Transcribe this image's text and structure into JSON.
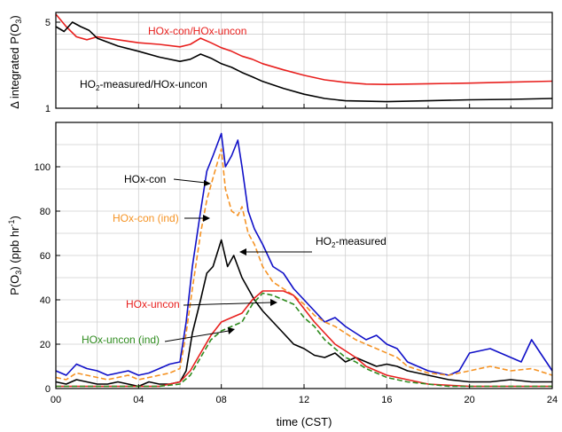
{
  "chart_data": [
    {
      "panel": "top",
      "type": "line",
      "ylabel_prefix": "Δ integrated P(O",
      "ylabel_sub": "3",
      "ylabel_suffix": ")",
      "y_scale": "log",
      "ylim": [
        1,
        6
      ],
      "yticks": [
        {
          "value": 1,
          "label": "1"
        },
        {
          "value": 5,
          "label": "5"
        }
      ],
      "xlim": [
        0,
        24
      ],
      "grid": true,
      "series": [
        {
          "name": "HOx-con/HOx-uncon",
          "color": "#e8201e",
          "x": [
            0,
            0.5,
            1,
            1.5,
            2,
            3,
            4,
            5,
            6,
            6.5,
            7,
            7.5,
            8,
            8.5,
            9,
            9.5,
            10,
            11,
            12,
            13,
            14,
            15,
            16,
            18,
            20,
            22,
            24
          ],
          "values": [
            5.8,
            4.6,
            3.8,
            3.6,
            3.8,
            3.6,
            3.4,
            3.3,
            3.15,
            3.3,
            3.7,
            3.4,
            3.1,
            2.9,
            2.65,
            2.5,
            2.3,
            2.05,
            1.85,
            1.7,
            1.62,
            1.57,
            1.56,
            1.58,
            1.6,
            1.63,
            1.66
          ]
        },
        {
          "name": "HO2-measured/HOx-uncon",
          "color": "#000000",
          "x": [
            0,
            0.4,
            0.8,
            1.2,
            1.6,
            2,
            3,
            4,
            5,
            6,
            6.5,
            7,
            7.5,
            8,
            8.5,
            9,
            9.5,
            10,
            11,
            12,
            13,
            14,
            15,
            16,
            18,
            20,
            22,
            24
          ],
          "values": [
            4.6,
            4.2,
            5.0,
            4.6,
            4.3,
            3.7,
            3.2,
            2.9,
            2.6,
            2.4,
            2.5,
            2.75,
            2.55,
            2.3,
            2.15,
            1.95,
            1.8,
            1.65,
            1.45,
            1.3,
            1.2,
            1.15,
            1.14,
            1.13,
            1.15,
            1.17,
            1.18,
            1.2
          ]
        }
      ],
      "annotations": [
        {
          "text": "HOx-con/HOx-uncon",
          "color": "#e8201e"
        },
        {
          "text_main": "HO",
          "text_sub": "2",
          "text_rest": "-measured/HOx-uncon",
          "color": "#000000"
        }
      ]
    },
    {
      "panel": "bottom",
      "type": "line",
      "xlabel": "time (CST)",
      "ylabel_prefix": "P(O",
      "ylabel_sub": "3",
      "ylabel_suffix": ") (ppb hr",
      "ylabel_sup": "-1",
      "ylabel_end": ")",
      "xlim": [
        0,
        24
      ],
      "ylim": [
        0,
        120
      ],
      "xticks": [
        {
          "value": 0,
          "label": "00"
        },
        {
          "value": 4,
          "label": "04"
        },
        {
          "value": 8,
          "label": "08"
        },
        {
          "value": 12,
          "label": "12"
        },
        {
          "value": 16,
          "label": "16"
        },
        {
          "value": 20,
          "label": "20"
        },
        {
          "value": 24,
          "label": "24"
        }
      ],
      "yticks": [
        {
          "value": 0,
          "label": "0"
        },
        {
          "value": 20,
          "label": "20"
        },
        {
          "value": 40,
          "label": "40"
        },
        {
          "value": 60,
          "label": "60"
        },
        {
          "value": 80,
          "label": "80"
        },
        {
          "value": 100,
          "label": "100"
        }
      ],
      "grid": true,
      "series": [
        {
          "name": "HOx-con",
          "color": "#1010c8",
          "dash": "solid",
          "x": [
            0,
            0.5,
            1,
            1.5,
            2,
            2.5,
            3,
            3.5,
            4,
            4.5,
            5,
            5.5,
            6,
            6.3,
            6.6,
            7,
            7.3,
            7.6,
            8,
            8.2,
            8.5,
            8.8,
            9,
            9.3,
            9.6,
            10,
            10.5,
            11,
            11.5,
            12,
            12.5,
            13,
            13.5,
            14,
            14.5,
            15,
            15.5,
            16,
            16.5,
            17,
            18,
            19,
            19.5,
            20,
            21,
            22,
            22.5,
            23,
            23.5,
            24
          ],
          "values": [
            8,
            6,
            11,
            9,
            8,
            6,
            7,
            8,
            6,
            7,
            9,
            11,
            12,
            30,
            55,
            80,
            98,
            105,
            115,
            100,
            105,
            112,
            100,
            80,
            72,
            65,
            55,
            52,
            45,
            40,
            35,
            30,
            32,
            28,
            25,
            22,
            24,
            20,
            18,
            12,
            8,
            6,
            8,
            16,
            18,
            14,
            12,
            22,
            15,
            8
          ]
        },
        {
          "name": "HOx-con (ind)",
          "color": "#f59324",
          "dash": "dashed",
          "x": [
            0,
            0.5,
            1,
            1.5,
            2,
            2.5,
            3,
            3.5,
            4,
            4.5,
            5,
            5.5,
            6,
            6.3,
            6.6,
            7,
            7.3,
            7.6,
            8,
            8.2,
            8.5,
            8.8,
            9,
            9.3,
            9.6,
            10,
            10.5,
            11,
            11.5,
            12,
            12.5,
            13,
            13.5,
            14,
            14.5,
            15,
            15.5,
            16,
            16.5,
            17,
            18,
            19,
            20,
            21,
            22,
            23,
            24
          ],
          "values": [
            5,
            4,
            7,
            6,
            5,
            4,
            5,
            6,
            4,
            5,
            6,
            7,
            9,
            25,
            45,
            70,
            85,
            95,
            108,
            90,
            80,
            78,
            82,
            70,
            65,
            55,
            48,
            45,
            42,
            38,
            33,
            30,
            28,
            25,
            22,
            20,
            18,
            16,
            14,
            10,
            7,
            6,
            8,
            10,
            8,
            9,
            6
          ]
        },
        {
          "name": "HO2-measured",
          "color": "#000000",
          "dash": "solid",
          "x": [
            0,
            0.5,
            1,
            1.5,
            2,
            2.5,
            3,
            3.5,
            4,
            4.5,
            5,
            5.5,
            6,
            6.3,
            6.6,
            7,
            7.3,
            7.6,
            8,
            8.3,
            8.6,
            9,
            9.3,
            9.6,
            10,
            10.5,
            11,
            11.5,
            12,
            12.5,
            13,
            13.5,
            14,
            14.5,
            15,
            15.5,
            16,
            16.5,
            17,
            18,
            19,
            20,
            21,
            22,
            23,
            24
          ],
          "values": [
            3,
            2,
            4,
            3,
            2,
            2,
            3,
            2,
            1,
            3,
            2,
            2,
            3,
            8,
            25,
            40,
            52,
            55,
            67,
            55,
            60,
            50,
            45,
            40,
            35,
            30,
            25,
            20,
            18,
            15,
            14,
            16,
            12,
            14,
            12,
            10,
            11,
            10,
            8,
            6,
            4,
            3,
            3,
            4,
            3,
            3
          ]
        },
        {
          "name": "HOx-uncon",
          "color": "#e8201e",
          "dash": "solid",
          "x": [
            0,
            1,
            2,
            3,
            4,
            5,
            6,
            6.5,
            7,
            7.5,
            8,
            8.5,
            9,
            9.5,
            10,
            10.5,
            11,
            11.5,
            12,
            12.5,
            13,
            13.5,
            14,
            14.5,
            15,
            16,
            17,
            18,
            19,
            20,
            21,
            22,
            23,
            24
          ],
          "values": [
            1,
            1,
            1,
            1,
            1,
            1,
            3,
            8,
            16,
            24,
            30,
            32,
            34,
            40,
            44,
            44,
            44,
            42,
            36,
            30,
            25,
            20,
            17,
            14,
            10,
            6,
            4,
            2,
            1.5,
            1,
            1,
            1,
            1,
            1
          ]
        },
        {
          "name": "HOx-uncon (ind)",
          "color": "#2e8b1e",
          "dash": "dashed",
          "x": [
            0,
            1,
            2,
            3,
            4,
            5,
            6,
            6.5,
            7,
            7.5,
            8,
            8.5,
            9,
            9.5,
            10,
            10.5,
            11,
            11.5,
            12,
            12.5,
            13,
            13.5,
            14,
            14.5,
            15,
            16,
            17,
            18,
            19,
            20,
            21,
            22,
            23,
            24
          ],
          "values": [
            1,
            1,
            1,
            1,
            1,
            1,
            2,
            6,
            14,
            22,
            26,
            28,
            30,
            38,
            43,
            42,
            40,
            38,
            32,
            28,
            22,
            18,
            14,
            12,
            9,
            5,
            3,
            2,
            1,
            1,
            1,
            1,
            1,
            1
          ]
        }
      ],
      "annotations": [
        {
          "text": "HOx-con",
          "color": "#000000"
        },
        {
          "text": "HOx-con (ind)",
          "color": "#f59324"
        },
        {
          "text_main": "HO",
          "text_sub": "2",
          "text_rest": "-measured",
          "color": "#000000"
        },
        {
          "text": "HOx-uncon",
          "color": "#e8201e"
        },
        {
          "text": "HOx-uncon (ind)",
          "color": "#2e8b1e"
        }
      ]
    }
  ]
}
